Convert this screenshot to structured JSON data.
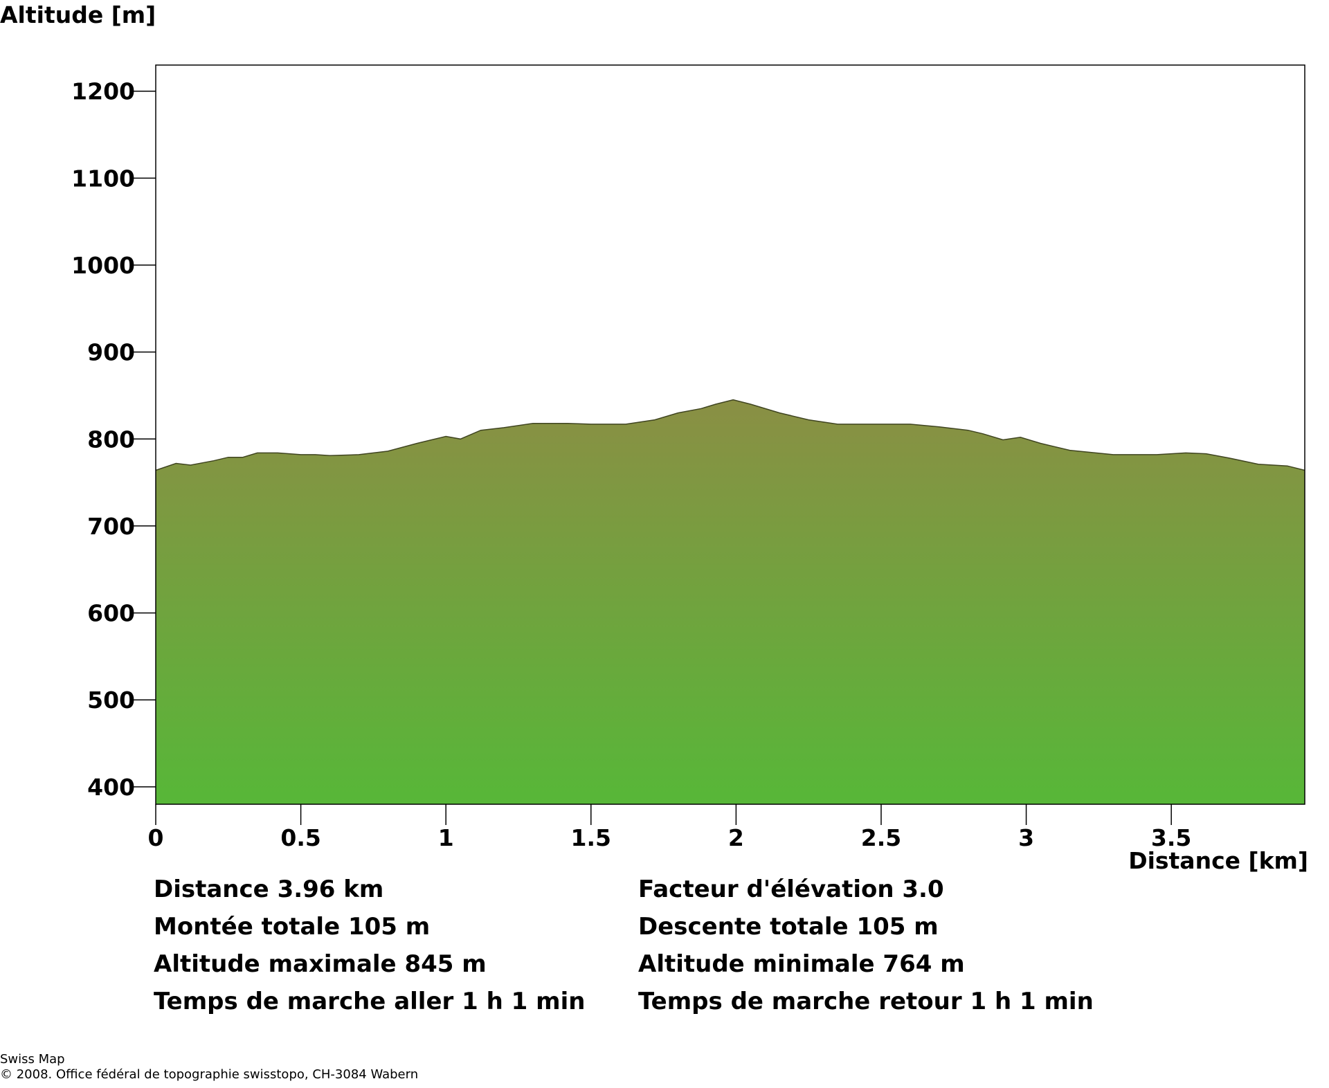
{
  "chart_data": {
    "type": "area",
    "ylabel": "Altitude [m]",
    "xlabel": "Distance [km]",
    "xlim": [
      0,
      3.96
    ],
    "ylim": [
      380,
      1230
    ],
    "x_ticks": [
      0,
      0.5,
      1,
      1.5,
      2,
      2.5,
      3,
      3.5
    ],
    "x_tick_labels": [
      "0",
      "0.5",
      "1",
      "1.5",
      "2",
      "2.5",
      "3",
      "3.5"
    ],
    "y_ticks": [
      400,
      500,
      600,
      700,
      800,
      900,
      1000,
      1100,
      1200
    ],
    "y_tick_labels": [
      "400",
      "500",
      "600",
      "700",
      "800",
      "900",
      "1000",
      "1100",
      "1200"
    ],
    "fill_colors": {
      "top": "#8a8f44",
      "bottom": "#57b738"
    },
    "x": [
      0,
      0.07,
      0.12,
      0.2,
      0.25,
      0.3,
      0.35,
      0.42,
      0.5,
      0.55,
      0.6,
      0.7,
      0.8,
      0.9,
      1.0,
      1.05,
      1.12,
      1.2,
      1.3,
      1.42,
      1.5,
      1.62,
      1.72,
      1.8,
      1.88,
      1.93,
      1.99,
      2.05,
      2.15,
      2.25,
      2.35,
      2.5,
      2.6,
      2.7,
      2.8,
      2.85,
      2.92,
      2.98,
      3.05,
      3.15,
      3.3,
      3.45,
      3.55,
      3.62,
      3.7,
      3.8,
      3.9,
      3.96
    ],
    "y": [
      764,
      772,
      770,
      775,
      779,
      779,
      784,
      784,
      782,
      782,
      781,
      782,
      786,
      795,
      803,
      800,
      810,
      813,
      818,
      818,
      817,
      817,
      822,
      830,
      835,
      840,
      845,
      840,
      830,
      822,
      817,
      817,
      817,
      814,
      810,
      806,
      799,
      802,
      795,
      787,
      782,
      782,
      784,
      783,
      778,
      771,
      769,
      764
    ]
  },
  "stats_left": [
    "Distance 3.96 km",
    "Montée totale  105 m",
    "Altitude maximale  845 m",
    "Temps de marche aller  1 h 1 min"
  ],
  "stats_right": [
    "Facteur d'élévation 3.0",
    "Descente totale  105 m",
    "Altitude minimale  764 m",
    "Temps de marche retour  1 h 1 min"
  ],
  "footer": {
    "line1": "Swiss Map",
    "line2": "© 2008. Office fédéral de topographie swisstopo, CH-3084 Wabern"
  }
}
